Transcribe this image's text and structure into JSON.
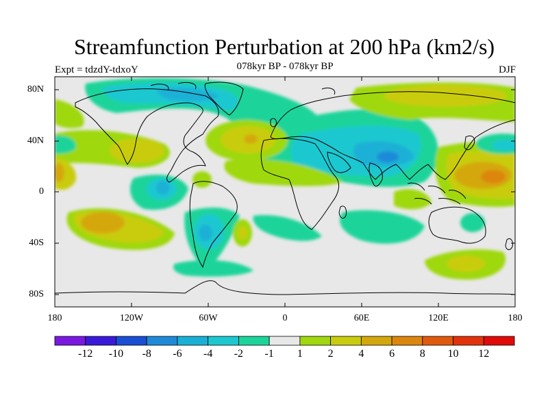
{
  "title": "Streamfunction Perturbation at 200 hPa (km2/s)",
  "subtitle": "078kyr BP - 078kyr BP",
  "experiment_label": "Expt = tdzdY-tdxoY",
  "season_label": "DJF",
  "y_axis_ticks": [
    "80N",
    "40N",
    "0",
    "40S",
    "80S"
  ],
  "x_axis_ticks": [
    "180",
    "120W",
    "60W",
    "0",
    "60E",
    "120E",
    "180"
  ],
  "colorbar": {
    "levels": [
      "-12",
      "-10",
      "-8",
      "-6",
      "-4",
      "-2",
      "-1",
      "1",
      "2",
      "4",
      "6",
      "8",
      "10",
      "12"
    ],
    "colors": [
      "#7b18e0",
      "#3a1ad8",
      "#1a4ed4",
      "#1e8ad8",
      "#1ab0d6",
      "#1cc8d0",
      "#1cd49a",
      "#e8e8e8",
      "#9fd80e",
      "#c9cc0e",
      "#d4a80c",
      "#dc8610",
      "#e05a0e",
      "#e2320c",
      "#e00a0a"
    ]
  },
  "map": {
    "lon_range": [
      -180,
      180
    ],
    "lat_range": [
      -90,
      90
    ],
    "projection": "cylindrical-equidistant"
  }
}
